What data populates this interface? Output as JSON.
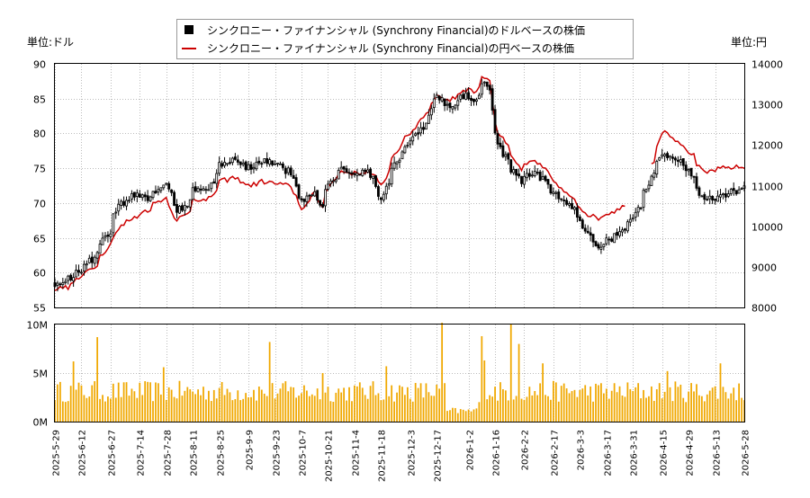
{
  "chart_data": [
    {
      "type": "candlestick",
      "left_axis_label": "単位:ドル",
      "right_axis_label": "単位:円",
      "ylim_left": [
        55,
        90
      ],
      "yticks_left": [
        55,
        60,
        65,
        70,
        75,
        80,
        85,
        90
      ],
      "ylim_right": [
        8000,
        14000
      ],
      "yticks_right": [
        8000,
        9000,
        10000,
        11000,
        12000,
        13000,
        14000
      ],
      "grid": true,
      "legend_position": "top-center",
      "legend": [
        {
          "label": "シンクロニー・ファイナンシャル (Synchrony Financial)のドルベースの株価",
          "color": "#000000",
          "marker": "square"
        },
        {
          "label": "シンクロニー・ファイナンシャル (Synchrony Financial)の円ベースの株価",
          "color": "#cc0000",
          "marker": "line"
        }
      ],
      "anchors_usd": [
        [
          "2025-05-29",
          58.5
        ],
        [
          "2025-06-05",
          59.0
        ],
        [
          "2025-06-12",
          60.5
        ],
        [
          "2025-06-19",
          62.0
        ],
        [
          "2025-06-27",
          66.0
        ],
        [
          "2025-07-03",
          70.0
        ],
        [
          "2025-07-10",
          71.0
        ],
        [
          "2025-07-17",
          70.5
        ],
        [
          "2025-07-24",
          72.5
        ],
        [
          "2025-07-28",
          73.0
        ],
        [
          "2025-08-01",
          69.0
        ],
        [
          "2025-08-07",
          69.5
        ],
        [
          "2025-08-11",
          72.0
        ],
        [
          "2025-08-18",
          71.5
        ],
        [
          "2025-08-25",
          75.5
        ],
        [
          "2025-09-01",
          76.0
        ],
        [
          "2025-09-09",
          75.0
        ],
        [
          "2025-09-16",
          76.0
        ],
        [
          "2025-09-23",
          75.5
        ],
        [
          "2025-09-30",
          74.5
        ],
        [
          "2025-10-07",
          70.5
        ],
        [
          "2025-10-14",
          71.5
        ],
        [
          "2025-10-17",
          69.0
        ],
        [
          "2025-10-21",
          73.0
        ],
        [
          "2025-10-28",
          75.0
        ],
        [
          "2025-11-04",
          74.0
        ],
        [
          "2025-11-11",
          74.5
        ],
        [
          "2025-11-18",
          70.5
        ],
        [
          "2025-11-25",
          75.5
        ],
        [
          "2025-12-03",
          79.0
        ],
        [
          "2025-12-10",
          81.0
        ],
        [
          "2025-12-17",
          85.0
        ],
        [
          "2025-12-24",
          84.0
        ],
        [
          "2026-01-02",
          85.5
        ],
        [
          "2026-01-07",
          84.5
        ],
        [
          "2026-01-10",
          88.0
        ],
        [
          "2026-01-14",
          86.5
        ],
        [
          "2026-01-16",
          80.0
        ],
        [
          "2026-01-23",
          76.0
        ],
        [
          "2026-01-30",
          73.0
        ],
        [
          "2026-02-06",
          74.5
        ],
        [
          "2026-02-13",
          73.0
        ],
        [
          "2026-02-20",
          70.5
        ],
        [
          "2026-02-27",
          69.0
        ],
        [
          "2026-03-06",
          66.0
        ],
        [
          "2026-03-12",
          64.0
        ],
        [
          "2026-03-19",
          65.0
        ],
        [
          "2026-03-26",
          66.5
        ],
        [
          "2026-04-02",
          69.0
        ],
        [
          "2026-04-09",
          73.5
        ],
        [
          "2026-04-16",
          77.0
        ],
        [
          "2026-04-23",
          76.5
        ],
        [
          "2026-04-30",
          74.0
        ],
        [
          "2026-05-07",
          70.5
        ],
        [
          "2026-05-14",
          71.0
        ],
        [
          "2026-05-21",
          71.5
        ],
        [
          "2026-05-28",
          72.0
        ]
      ],
      "anchors_jpy": [
        [
          "2025-05-29",
          8450
        ],
        [
          "2025-06-05",
          8500
        ],
        [
          "2025-06-12",
          8750
        ],
        [
          "2025-06-19",
          9000
        ],
        [
          "2025-06-27",
          9550
        ],
        [
          "2025-07-03",
          10000
        ],
        [
          "2025-07-10",
          10200
        ],
        [
          "2025-07-17",
          10400
        ],
        [
          "2025-07-24",
          10650
        ],
        [
          "2025-07-28",
          10700
        ],
        [
          "2025-08-01",
          10100
        ],
        [
          "2025-08-07",
          10300
        ],
        [
          "2025-08-11",
          10700
        ],
        [
          "2025-08-18",
          10600
        ],
        [
          "2025-08-25",
          11100
        ],
        [
          "2025-09-01",
          11200
        ],
        [
          "2025-09-09",
          11000
        ],
        [
          "2025-09-16",
          11100
        ],
        [
          "2025-09-23",
          11050
        ],
        [
          "2025-09-30",
          11000
        ],
        [
          "2025-10-07",
          10450
        ],
        [
          "2025-10-14",
          10800
        ],
        [
          "2025-10-17",
          10450
        ],
        [
          "2025-10-21",
          11000
        ],
        [
          "2025-10-28",
          11350
        ],
        [
          "2025-11-04",
          11300
        ],
        [
          "2025-11-11",
          11350
        ],
        [
          "2025-11-18",
          11000
        ],
        [
          "2025-11-25",
          11800
        ],
        [
          "2025-12-03",
          12300
        ],
        [
          "2025-12-10",
          12700
        ],
        [
          "2025-12-17",
          13200
        ],
        [
          "2025-12-24",
          13100
        ],
        [
          "2026-01-02",
          13400
        ],
        [
          "2026-01-07",
          13300
        ],
        [
          "2026-01-10",
          13800
        ],
        [
          "2026-01-14",
          13600
        ],
        [
          "2026-01-16",
          12600
        ],
        [
          "2026-01-23",
          11950
        ],
        [
          "2026-01-30",
          11400
        ],
        [
          "2026-02-06",
          11600
        ],
        [
          "2026-02-13",
          11400
        ],
        [
          "2026-02-20",
          10900
        ],
        [
          "2026-02-27",
          10700
        ],
        [
          "2026-03-06",
          10300
        ],
        [
          "2026-03-12",
          10200
        ],
        [
          "2026-03-19",
          10350
        ],
        [
          "2026-03-26",
          10500
        ],
        [
          "2026-04-02",
          11000
        ],
        [
          "2026-04-09",
          11500
        ],
        [
          "2026-04-16",
          12400
        ],
        [
          "2026-04-23",
          12100
        ],
        [
          "2026-04-30",
          11800
        ],
        [
          "2026-05-07",
          11300
        ],
        [
          "2026-05-14",
          11400
        ],
        [
          "2026-05-21",
          11450
        ],
        [
          "2026-05-28",
          11450
        ]
      ],
      "jpy_gap": [
        "2026-03-27",
        "2026-04-09"
      ]
    },
    {
      "type": "bar",
      "series_color": "#f0a800",
      "ylim": [
        0,
        10000000
      ],
      "yticks": [
        0,
        5000000,
        10000000
      ],
      "ytick_labels": [
        "0M",
        "5M",
        "10M"
      ],
      "typical_volume": [
        2000000,
        4200000
      ],
      "spikes": [
        [
          "2025-06-09",
          6200000
        ],
        [
          "2025-06-20",
          8700000
        ],
        [
          "2025-07-25",
          5600000
        ],
        [
          "2025-09-19",
          8200000
        ],
        [
          "2025-10-17",
          5000000
        ],
        [
          "2025-11-20",
          5700000
        ],
        [
          "2025-12-19",
          10400000
        ],
        [
          "2026-01-09",
          8800000
        ],
        [
          "2026-01-12",
          6300000
        ],
        [
          "2026-01-26",
          10000000
        ],
        [
          "2026-01-29",
          8000000
        ],
        [
          "2026-02-11",
          6000000
        ],
        [
          "2026-04-17",
          5200000
        ],
        [
          "2026-05-15",
          6000000
        ]
      ],
      "x_tick_labels": [
        "2025-5-29",
        "2025-6-12",
        "2025-6-27",
        "2025-7-14",
        "2025-7-28",
        "2025-8-11",
        "2025-8-25",
        "2025-9-9",
        "2025-9-23",
        "2025-10-7",
        "2025-10-21",
        "2025-11-4",
        "2025-11-18",
        "2025-12-3",
        "2025-12-17",
        "2026-1-2",
        "2026-1-16",
        "2026-2-2",
        "2026-2-17",
        "2026-3-3",
        "2026-3-17",
        "2026-3-31",
        "2026-4-15",
        "2026-4-29",
        "2026-5-13",
        "2026-5-28"
      ]
    }
  ]
}
